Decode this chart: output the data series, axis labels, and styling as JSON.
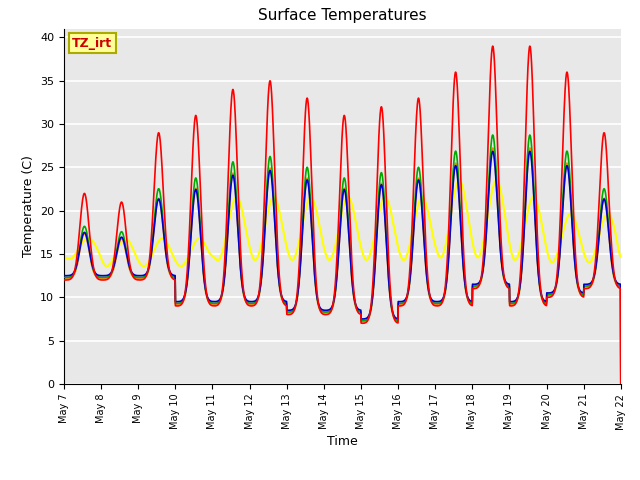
{
  "title": "Surface Temperatures",
  "xlabel": "Time",
  "ylabel": "Temperature (C)",
  "ylim": [
    0,
    41
  ],
  "yticks": [
    0,
    5,
    10,
    15,
    20,
    25,
    30,
    35,
    40
  ],
  "x_tick_labels": [
    "May 7",
    "May 8",
    "May 9",
    "May 10",
    "May 11",
    "May 12",
    "May 13",
    "May 14",
    "May 15",
    "May 16",
    "May 17",
    "May 18",
    "May 19",
    "May 20",
    "May 21",
    "May 22"
  ],
  "series": {
    "IRT Ground": {
      "color": "#FF0000",
      "lw": 1.2
    },
    "IRT Canopy": {
      "color": "#0000CC",
      "lw": 1.2
    },
    "Floor Tair": {
      "color": "#00AA00",
      "lw": 1.2
    },
    "Tower TAir": {
      "color": "#FF8800",
      "lw": 1.2
    },
    "TsoilD_2cm": {
      "color": "#FFFF00",
      "lw": 1.5
    }
  },
  "annotation_text": "TZ_irt",
  "annotation_color": "#CC0000",
  "annotation_bg": "#FFFF99",
  "annotation_border": "#AAAA00",
  "background_color": "#E8E8E8",
  "grid_color": "#FFFFFF",
  "title_fontsize": 11,
  "axis_fontsize": 9,
  "tick_fontsize": 8
}
